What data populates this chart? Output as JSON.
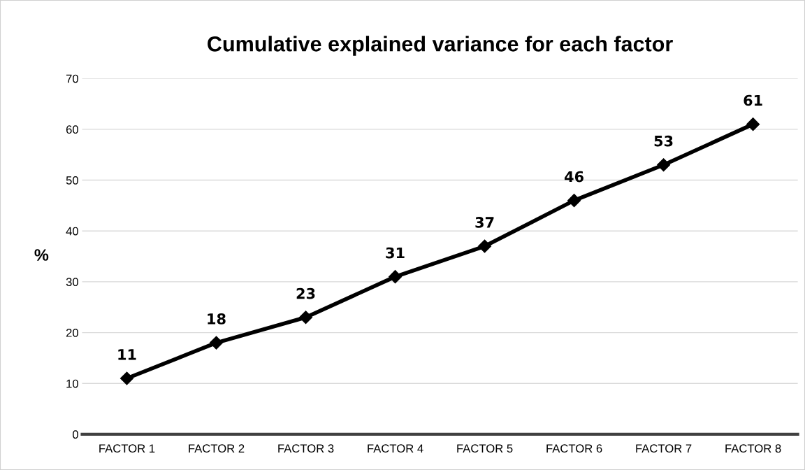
{
  "chart_data": {
    "type": "line",
    "title": "Cumulative explained variance for each factor",
    "ylabel": "%",
    "categories": [
      "FACTOR 1",
      "FACTOR 2",
      "FACTOR 3",
      "FACTOR 4",
      "FACTOR 5",
      "FACTOR 6",
      "FACTOR 7",
      "FACTOR 8"
    ],
    "series": [
      {
        "color": "#000000",
        "values": [
          11,
          18,
          23,
          31,
          37,
          46,
          53,
          61
        ]
      }
    ],
    "ylim": [
      0,
      70
    ],
    "yticks": [
      0,
      10,
      20,
      30,
      40,
      50,
      60,
      70
    ],
    "grid": "y",
    "marker": "diamond",
    "line_style": "solid",
    "data_labels": true
  }
}
